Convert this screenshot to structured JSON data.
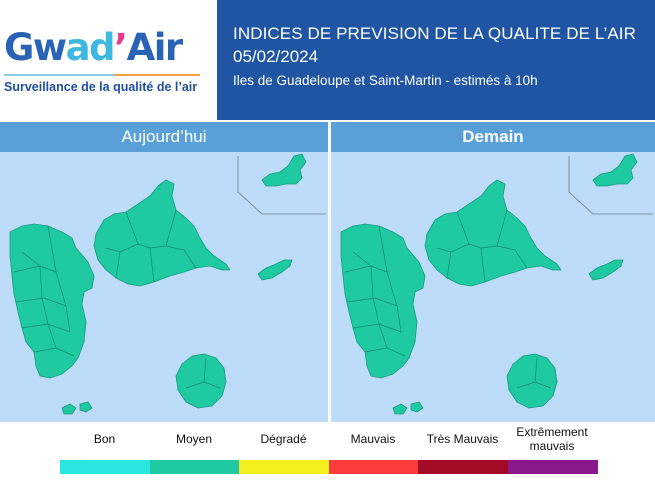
{
  "logo": {
    "part1": "Gw",
    "part2": "ad",
    "part3": "’",
    "part4": "Air",
    "tagline": "Surveillance de la qualité de l’air"
  },
  "header": {
    "title": "INDICES DE PREVISION DE LA QUALITE DE L’AIR",
    "date": "05/02/2024",
    "subtitle": "Iles de Guadeloupe et Saint-Martin - estimés à 10h"
  },
  "maps": [
    {
      "label": "Aujourd’hui",
      "index": "Moyen",
      "fill": "#1fc9a1"
    },
    {
      "label": "Demain",
      "index": "Moyen",
      "fill": "#1fc9a1"
    }
  ],
  "legend": [
    {
      "label": "Bon",
      "color": "#28e6e0"
    },
    {
      "label": "Moyen",
      "color": "#1fc9a1"
    },
    {
      "label": "Dégradé",
      "color": "#f2ef1c"
    },
    {
      "label": "Mauvais",
      "color": "#fb3c3c"
    },
    {
      "label": "Très Mauvais",
      "color": "#a40b26"
    },
    {
      "label": "Extrêmement mauvais",
      "color": "#8a1a8c"
    }
  ],
  "colors": {
    "header_bg": "#1f55a3",
    "sea": "#bcdcf9",
    "band": "#5aa0d8"
  }
}
